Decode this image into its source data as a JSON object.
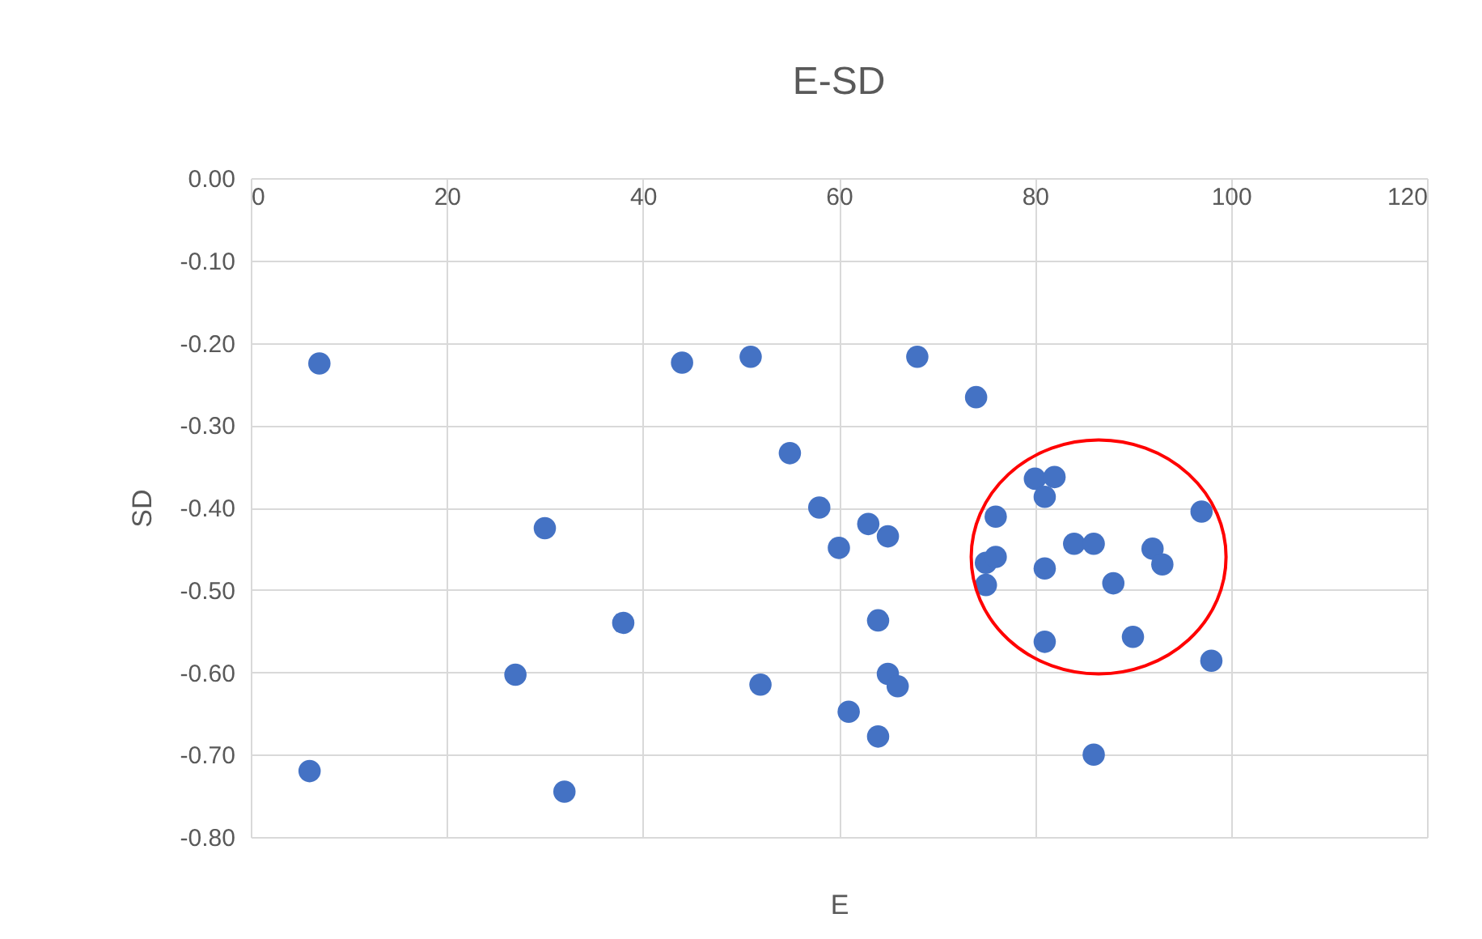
{
  "chart_data": {
    "type": "scatter",
    "title": "E-SD",
    "xlabel": "E",
    "ylabel": "SD",
    "x": [
      6,
      7,
      30,
      27,
      32,
      38,
      44,
      51,
      52,
      55,
      58,
      60,
      63,
      65,
      64,
      65,
      66,
      61,
      64,
      68,
      74,
      80,
      82,
      81,
      76,
      75,
      76,
      75,
      81,
      84,
      86,
      88,
      92,
      93,
      97,
      81,
      90,
      98,
      86
    ],
    "series": [
      {
        "color": "#4472c4",
        "values": [
          -0.72,
          -0.225,
          -0.425,
          -0.603,
          -0.745,
          -0.54,
          -0.224,
          -0.217,
          -0.615,
          -0.334,
          -0.4,
          -0.449,
          -0.42,
          -0.435,
          -0.537,
          -0.602,
          -0.617,
          -0.648,
          -0.678,
          -0.217,
          -0.266,
          -0.365,
          -0.363,
          -0.387,
          -0.411,
          -0.467,
          -0.46,
          -0.494,
          -0.474,
          -0.444,
          -0.444,
          -0.492,
          -0.45,
          -0.469,
          -0.405,
          -0.563,
          -0.557,
          -0.586,
          -0.7
        ]
      }
    ],
    "xlim": [
      0,
      120
    ],
    "xticks": [
      0,
      20,
      40,
      60,
      80,
      100,
      120
    ],
    "ylim": [
      -0.8,
      0
    ],
    "yticks": [
      {
        "value": 0,
        "label": "0.00"
      },
      {
        "value": -0.1,
        "label": "-0.10"
      },
      {
        "value": -0.2,
        "label": "-0.20"
      },
      {
        "value": -0.3,
        "label": "-0.30"
      },
      {
        "value": -0.4,
        "label": "-0.40"
      },
      {
        "value": -0.5,
        "label": "-0.50"
      },
      {
        "value": -0.6,
        "label": "-0.60"
      },
      {
        "value": -0.7,
        "label": "-0.70"
      },
      {
        "value": -0.8,
        "label": "-0.80"
      }
    ],
    "grid": true,
    "marker": "circle"
  }
}
